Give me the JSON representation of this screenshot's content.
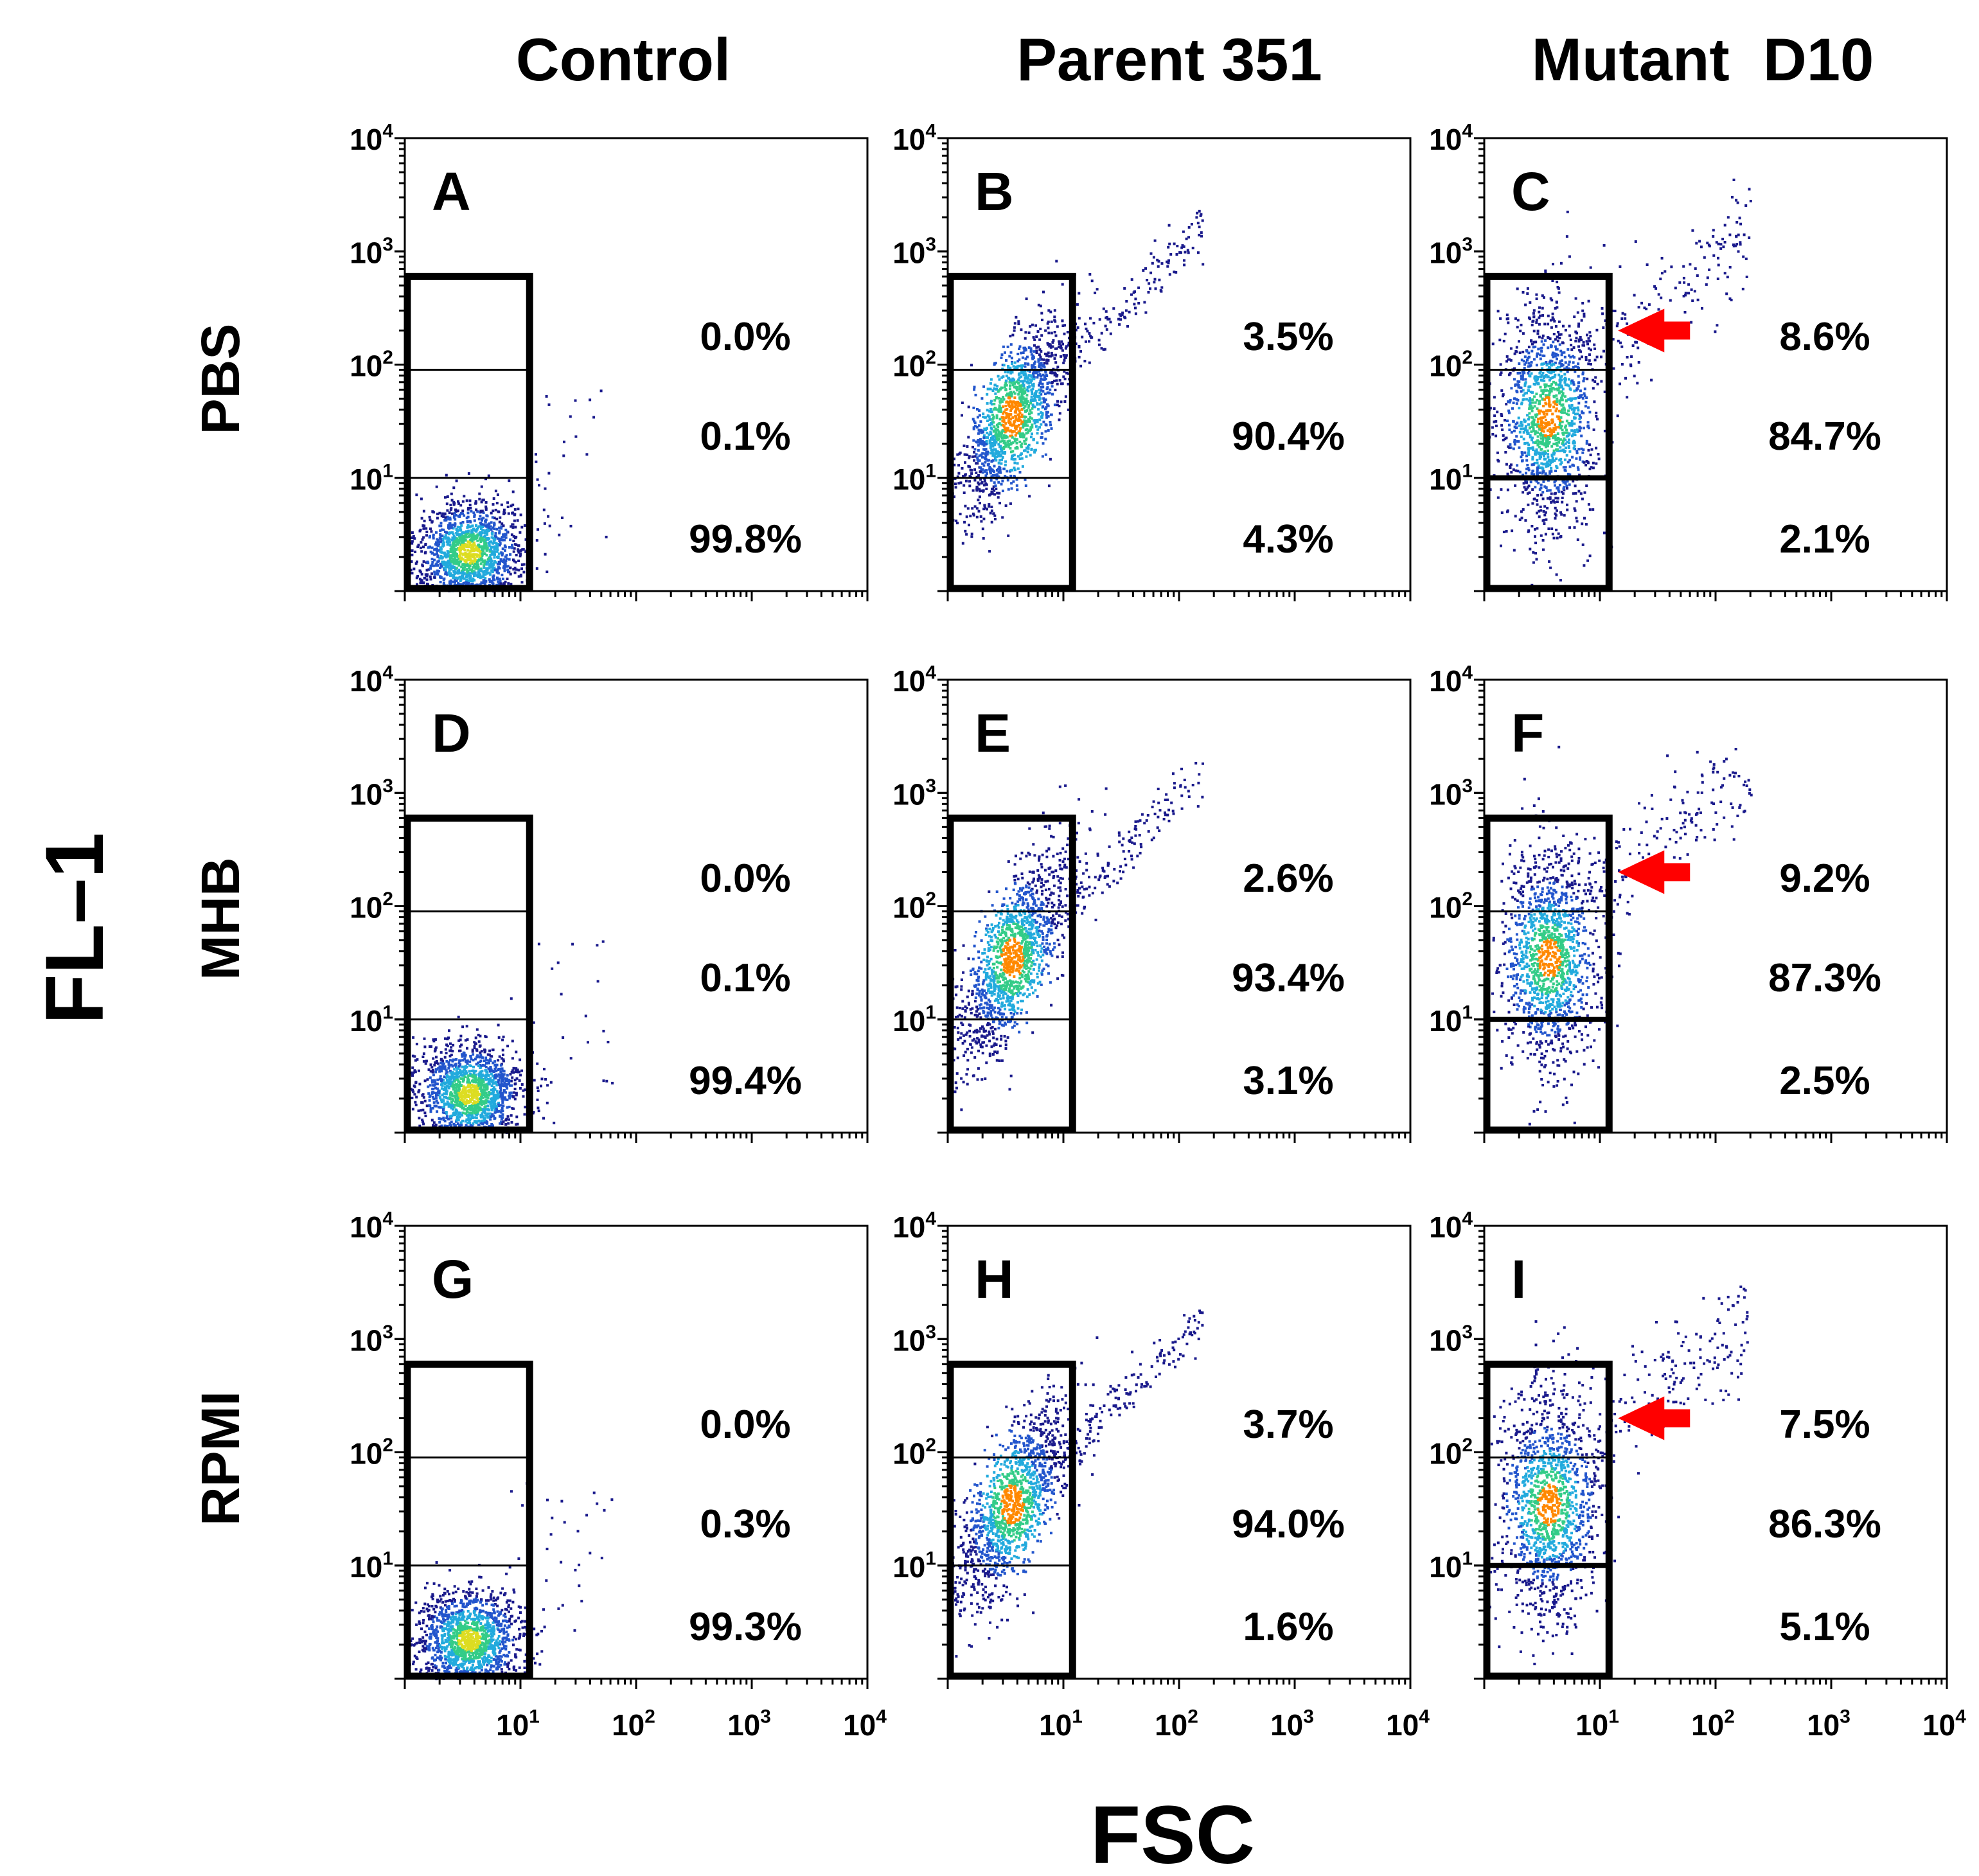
{
  "chart_data": {
    "type": "scatter",
    "subtype": "flow-cytometry-density-grid",
    "x_axis_label": "FSC",
    "y_axis_label": "FL–1",
    "columns": [
      "Control",
      "Parent 351",
      "Mutant  D10"
    ],
    "rows": [
      "PBS",
      "MHB",
      "RPMI"
    ],
    "x_scale": "log",
    "y_scale": "log",
    "x_range": [
      1,
      10000
    ],
    "y_range": [
      1,
      10000
    ],
    "x_tick_labels": [
      {
        "base": "10",
        "exp": "1"
      },
      {
        "base": "10",
        "exp": "2"
      },
      {
        "base": "10",
        "exp": "3"
      },
      {
        "base": "10",
        "exp": "4"
      }
    ],
    "y_tick_labels": [
      {
        "base": "10",
        "exp": "4"
      },
      {
        "base": "10",
        "exp": "3"
      },
      {
        "base": "10",
        "exp": "2"
      },
      {
        "base": "10",
        "exp": "1"
      }
    ],
    "gate_x_max": 12,
    "gate_y_max": 600,
    "gate_cut_high": 90,
    "gate_cut_low": 10,
    "arrow_color": "#ff0000",
    "density_colors": [
      "#1a1a8c",
      "#2255cc",
      "#22aadd",
      "#33cc88",
      "#dddd22",
      "#ff8800",
      "#dd2200"
    ],
    "panels": [
      {
        "label": "A",
        "row": 0,
        "col": 0,
        "high": "0.0%",
        "mid": "0.1%",
        "low": "99.8%",
        "arrow": false,
        "profile": "control"
      },
      {
        "label": "B",
        "row": 0,
        "col": 1,
        "high": "3.5%",
        "mid": "90.4%",
        "low": "4.3%",
        "arrow": false,
        "profile": "parent"
      },
      {
        "label": "C",
        "row": 0,
        "col": 2,
        "high": "8.6%",
        "mid": "84.7%",
        "low": "2.1%",
        "arrow": true,
        "profile": "mutant"
      },
      {
        "label": "D",
        "row": 1,
        "col": 0,
        "high": "0.0%",
        "mid": "0.1%",
        "low": "99.4%",
        "arrow": false,
        "profile": "control"
      },
      {
        "label": "E",
        "row": 1,
        "col": 1,
        "high": "2.6%",
        "mid": "93.4%",
        "low": "3.1%",
        "arrow": false,
        "profile": "parent"
      },
      {
        "label": "F",
        "row": 1,
        "col": 2,
        "high": "9.2%",
        "mid": "87.3%",
        "low": "2.5%",
        "arrow": true,
        "profile": "mutant"
      },
      {
        "label": "G",
        "row": 2,
        "col": 0,
        "high": "0.0%",
        "mid": "0.3%",
        "low": "99.3%",
        "arrow": false,
        "profile": "control"
      },
      {
        "label": "H",
        "row": 2,
        "col": 1,
        "high": "3.7%",
        "mid": "94.0%",
        "low": "1.6%",
        "arrow": false,
        "profile": "parent"
      },
      {
        "label": "I",
        "row": 2,
        "col": 2,
        "high": "7.5%",
        "mid": "86.3%",
        "low": "5.1%",
        "arrow": true,
        "profile": "mutant"
      }
    ]
  }
}
